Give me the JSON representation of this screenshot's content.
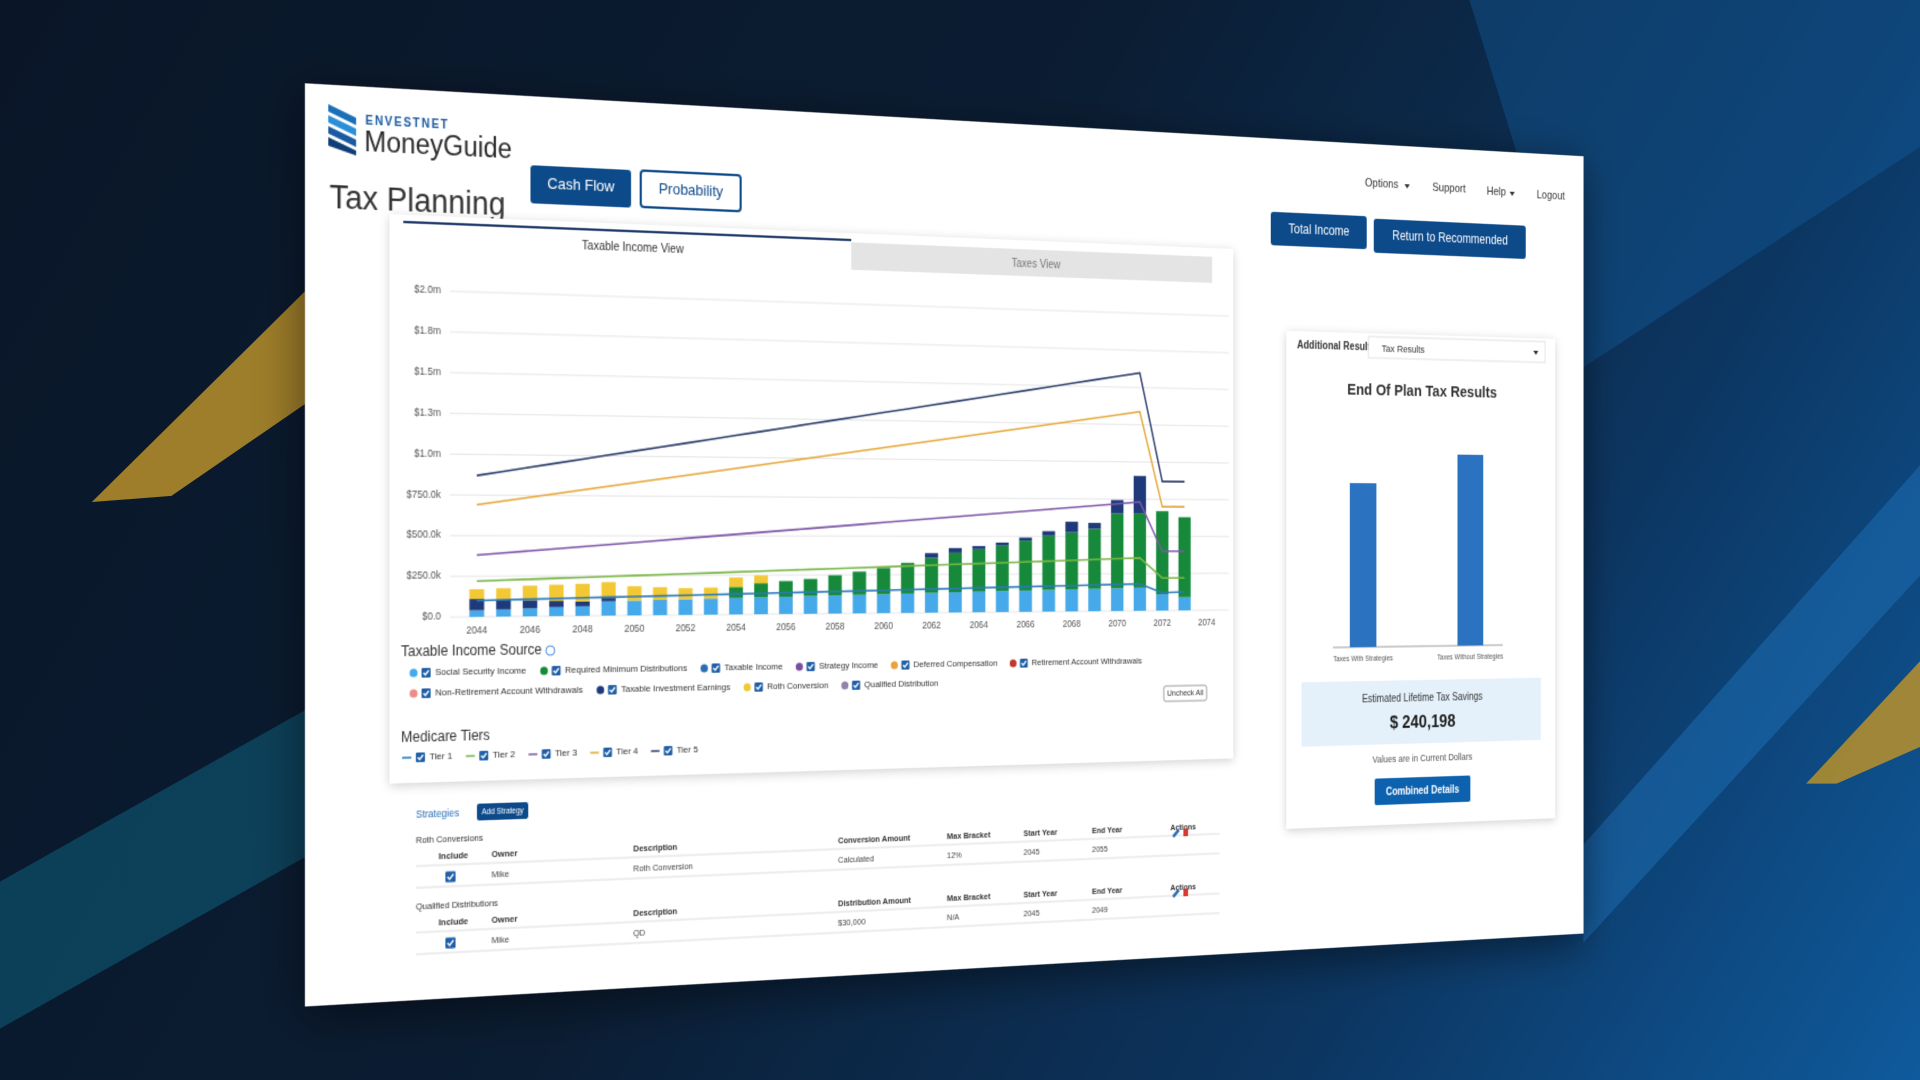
{
  "header": {
    "brand_top": "ENVESTNET",
    "brand": "MoneyGuide",
    "title": "Tax Planning"
  },
  "tabs": [
    "Cash Flow",
    "Probability"
  ],
  "nav": [
    "Options",
    "Support",
    "Help",
    "Logout"
  ],
  "actions": [
    "Total Income",
    "Return to Recommended"
  ],
  "chart_tabs": [
    "Taxable Income View",
    "Taxes View"
  ],
  "uncheck_all": "Uncheck All",
  "chart_data": [
    {
      "type": "bar",
      "stacked": true,
      "grid": true,
      "legend_title": "Taxable Income Source",
      "line_legend_title": "Medicare Tiers",
      "x": [
        2044,
        2045,
        2046,
        2047,
        2048,
        2049,
        2050,
        2051,
        2052,
        2053,
        2054,
        2055,
        2056,
        2057,
        2058,
        2059,
        2060,
        2061,
        2062,
        2063,
        2064,
        2065,
        2066,
        2067,
        2068,
        2069,
        2070,
        2071,
        2072,
        2073
      ],
      "xlim": [
        2043,
        2075
      ],
      "xticks": [
        2044,
        2046,
        2048,
        2050,
        2052,
        2054,
        2056,
        2058,
        2060,
        2062,
        2064,
        2066,
        2068,
        2070,
        2072,
        2074
      ],
      "ylim": [
        0,
        2000000
      ],
      "yticks": [
        {
          "value": 0,
          "label": "$0.0"
        },
        {
          "value": 250000,
          "label": "$250.0k"
        },
        {
          "value": 500000,
          "label": "$500.0k"
        },
        {
          "value": 750000,
          "label": "$750.0k"
        },
        {
          "value": 1000000,
          "label": "$1.0m"
        },
        {
          "value": 1250000,
          "label": "$1.3m"
        },
        {
          "value": 1500000,
          "label": "$1.5m"
        },
        {
          "value": 1750000,
          "label": "$1.8m"
        },
        {
          "value": 2000000,
          "label": "$2.0m"
        }
      ],
      "series": [
        {
          "name": "Social Security Income",
          "color": "#45a9ea",
          "values": [
            40000,
            45000,
            50000,
            55000,
            60000,
            90000,
            93000,
            96000,
            99000,
            102000,
            105000,
            108000,
            111000,
            114000,
            117000,
            120000,
            123000,
            126000,
            129000,
            132000,
            135000,
            138000,
            141000,
            144000,
            147000,
            150000,
            153000,
            156000,
            110000,
            90000
          ]
        },
        {
          "name": "Required Minimum Distributions",
          "color": "#168a3a",
          "values": [
            0,
            0,
            0,
            0,
            0,
            0,
            0,
            0,
            0,
            0,
            70000,
            90000,
            100000,
            110000,
            130000,
            150000,
            170000,
            200000,
            230000,
            260000,
            280000,
            300000,
            330000,
            360000,
            380000,
            400000,
            500000,
            500000,
            560000,
            540000
          ]
        },
        {
          "name": "Taxable Income",
          "color": "#2a6db5"
        },
        {
          "name": "Strategy Income",
          "color": "#7a4fa0"
        },
        {
          "name": "Deferred Compensation",
          "color": "#e8a33a"
        },
        {
          "name": "Retirement Account Withdrawals",
          "color": "#c0392b"
        },
        {
          "name": "Non-Retirement Account Withdrawals",
          "color": "#ec8b8b"
        },
        {
          "name": "Taxable Investment Earnings",
          "color": "#1f3a7a",
          "values": [
            70000,
            60000,
            50000,
            40000,
            30000,
            20000,
            0,
            0,
            0,
            0,
            0,
            0,
            0,
            0,
            0,
            0,
            0,
            0,
            30000,
            30000,
            20000,
            20000,
            20000,
            30000,
            70000,
            40000,
            90000,
            250000,
            0,
            0
          ]
        },
        {
          "name": "Roth Conversion",
          "color": "#f2c935",
          "values": [
            60000,
            70000,
            90000,
            100000,
            110000,
            100000,
            90000,
            80000,
            70000,
            70000,
            60000,
            50000,
            0,
            0,
            0,
            0,
            0,
            0,
            0,
            0,
            0,
            0,
            0,
            0,
            0,
            0,
            0,
            0,
            0,
            0
          ]
        },
        {
          "name": "Qualified Distribution",
          "color": "#8f83a6"
        }
      ],
      "line_series": [
        {
          "name": "Tier 1",
          "color": "#2a7ab8",
          "values": [
            100000,
            103000,
            106000,
            109000,
            112000,
            115000,
            118000,
            121000,
            124000,
            127000,
            130000,
            133000,
            136000,
            139000,
            142000,
            145000,
            148000,
            151000,
            154000,
            157000,
            160000,
            163000,
            166000,
            169000,
            172000,
            175000,
            178000,
            181000,
            120000,
            125000
          ]
        },
        {
          "name": "Tier 2",
          "color": "#7ab648",
          "values": [
            220000,
            225000,
            230000,
            235000,
            240000,
            245000,
            250000,
            255000,
            260000,
            265000,
            270000,
            275000,
            280000,
            285000,
            290000,
            295000,
            300000,
            305000,
            310000,
            315000,
            320000,
            325000,
            330000,
            335000,
            340000,
            345000,
            350000,
            355000,
            220000,
            220000
          ]
        },
        {
          "name": "Tier 3",
          "color": "#7e57a8",
          "values": [
            380000,
            393000,
            406000,
            419000,
            432000,
            445000,
            458000,
            471000,
            484000,
            497000,
            510000,
            523000,
            536000,
            549000,
            562000,
            575000,
            588000,
            601000,
            614000,
            627000,
            640000,
            653000,
            666000,
            679000,
            692000,
            705000,
            718000,
            731000,
            400000,
            400000
          ]
        },
        {
          "name": "Tier 4",
          "color": "#e5a83b",
          "values": [
            690000,
            714000,
            738000,
            762000,
            786000,
            810000,
            834000,
            858000,
            882000,
            906000,
            930000,
            954000,
            978000,
            1002000,
            1026000,
            1050000,
            1074000,
            1098000,
            1122000,
            1146000,
            1170000,
            1194000,
            1218000,
            1242000,
            1266000,
            1290000,
            1314000,
            1338000,
            700000,
            700000
          ]
        },
        {
          "name": "Tier 5",
          "color": "#2c3e6b",
          "values": [
            870000,
            897000,
            924000,
            951000,
            978000,
            1005000,
            1032000,
            1059000,
            1086000,
            1113000,
            1140000,
            1167000,
            1194000,
            1221000,
            1248000,
            1275000,
            1302000,
            1329000,
            1356000,
            1383000,
            1410000,
            1437000,
            1464000,
            1491000,
            1518000,
            1545000,
            1572000,
            1599000,
            870000,
            870000
          ]
        }
      ]
    },
    {
      "type": "bar",
      "title": "End Of Plan Tax Results",
      "categories": [
        "Taxes With Strategies",
        "Taxes Without Strategies"
      ],
      "values": [
        1320000,
        1560198
      ],
      "color": "#2b72c0"
    }
  ],
  "additional_results": {
    "label": "Additional Results",
    "dropdown": "Tax Results",
    "savings_label": "Estimated Lifetime Tax Savings",
    "savings": "$ 240,198",
    "note": "Values are in Current Dollars",
    "button": "Combined Details"
  },
  "strategies": {
    "label": "Strategies",
    "add": "Add Strategy",
    "sections": [
      {
        "title": "Roth Conversions",
        "headers": [
          "Include",
          "Owner",
          "Description",
          "Conversion Amount",
          "Max Bracket",
          "Start Year",
          "End Year",
          "Actions"
        ],
        "rows": [
          [
            "Mike",
            "Roth Conversion",
            "Calculated",
            "12%",
            "2045",
            "2055"
          ]
        ]
      },
      {
        "title": "Qualified Distributions",
        "headers": [
          "Include",
          "Owner",
          "Description",
          "Distribution Amount",
          "Max Bracket",
          "Start Year",
          "End Year",
          "Actions"
        ],
        "rows": [
          [
            "Mike",
            "QD",
            "$30,000",
            "N/A",
            "2045",
            "2049"
          ]
        ]
      }
    ]
  }
}
